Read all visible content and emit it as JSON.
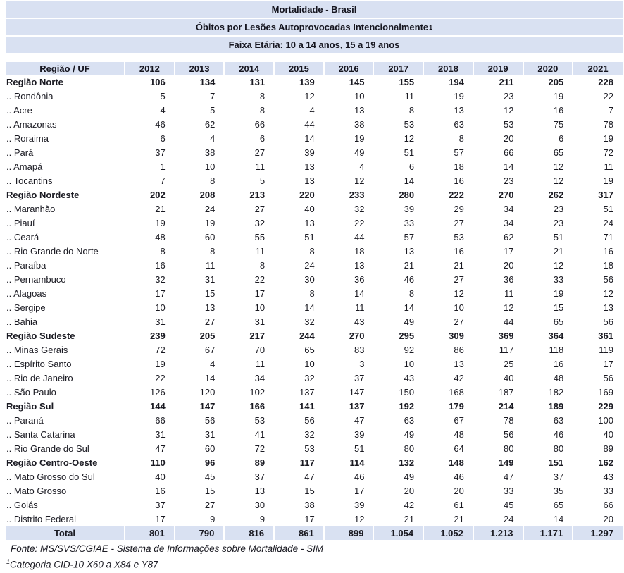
{
  "titles": {
    "line1": "Mortalidade - Brasil",
    "line2": "Óbitos por Lesões Autoprovocadas Intencionalmente",
    "line2_sup": "1",
    "line3": "Faixa Etária: 10 a 14 anos, 15 a 19 anos"
  },
  "colors": {
    "band_bg": "#d9e1f2",
    "text": "#1a1a22"
  },
  "table": {
    "header": [
      "Região / UF",
      "2012",
      "2013",
      "2014",
      "2015",
      "2016",
      "2017",
      "2018",
      "2019",
      "2020",
      "2021"
    ],
    "rows": [
      {
        "label": "Região Norte",
        "type": "region",
        "values": [
          "106",
          "134",
          "131",
          "139",
          "145",
          "155",
          "194",
          "211",
          "205",
          "228"
        ]
      },
      {
        "label": ".. Rondônia",
        "type": "state",
        "values": [
          "5",
          "7",
          "8",
          "12",
          "10",
          "11",
          "19",
          "23",
          "19",
          "22"
        ]
      },
      {
        "label": ".. Acre",
        "type": "state",
        "values": [
          "4",
          "5",
          "8",
          "4",
          "13",
          "8",
          "13",
          "12",
          "16",
          "7"
        ]
      },
      {
        "label": ".. Amazonas",
        "type": "state",
        "values": [
          "46",
          "62",
          "66",
          "44",
          "38",
          "53",
          "63",
          "53",
          "75",
          "78"
        ]
      },
      {
        "label": ".. Roraima",
        "type": "state",
        "values": [
          "6",
          "4",
          "6",
          "14",
          "19",
          "12",
          "8",
          "20",
          "6",
          "19"
        ]
      },
      {
        "label": ".. Pará",
        "type": "state",
        "values": [
          "37",
          "38",
          "27",
          "39",
          "49",
          "51",
          "57",
          "66",
          "65",
          "72"
        ]
      },
      {
        "label": ".. Amapá",
        "type": "state",
        "values": [
          "1",
          "10",
          "11",
          "13",
          "4",
          "6",
          "18",
          "14",
          "12",
          "11"
        ]
      },
      {
        "label": ".. Tocantins",
        "type": "state",
        "values": [
          "7",
          "8",
          "5",
          "13",
          "12",
          "14",
          "16",
          "23",
          "12",
          "19"
        ]
      },
      {
        "label": "Região Nordeste",
        "type": "region",
        "values": [
          "202",
          "208",
          "213",
          "220",
          "233",
          "280",
          "222",
          "270",
          "262",
          "317"
        ]
      },
      {
        "label": ".. Maranhão",
        "type": "state",
        "values": [
          "21",
          "24",
          "27",
          "40",
          "32",
          "39",
          "29",
          "34",
          "23",
          "51"
        ]
      },
      {
        "label": ".. Piauí",
        "type": "state",
        "values": [
          "19",
          "19",
          "32",
          "13",
          "22",
          "33",
          "27",
          "34",
          "23",
          "24"
        ]
      },
      {
        "label": ".. Ceará",
        "type": "state",
        "values": [
          "48",
          "60",
          "55",
          "51",
          "44",
          "57",
          "53",
          "62",
          "51",
          "71"
        ]
      },
      {
        "label": ".. Rio Grande do Norte",
        "type": "state",
        "values": [
          "8",
          "8",
          "11",
          "8",
          "18",
          "13",
          "16",
          "17",
          "21",
          "16"
        ]
      },
      {
        "label": ".. Paraíba",
        "type": "state",
        "values": [
          "16",
          "11",
          "8",
          "24",
          "13",
          "21",
          "21",
          "20",
          "12",
          "18"
        ]
      },
      {
        "label": ".. Pernambuco",
        "type": "state",
        "values": [
          "32",
          "31",
          "22",
          "30",
          "36",
          "46",
          "27",
          "36",
          "33",
          "56"
        ]
      },
      {
        "label": ".. Alagoas",
        "type": "state",
        "values": [
          "17",
          "15",
          "17",
          "8",
          "14",
          "8",
          "12",
          "11",
          "19",
          "12"
        ]
      },
      {
        "label": ".. Sergipe",
        "type": "state",
        "values": [
          "10",
          "13",
          "10",
          "14",
          "11",
          "14",
          "10",
          "12",
          "15",
          "13"
        ]
      },
      {
        "label": ".. Bahia",
        "type": "state",
        "values": [
          "31",
          "27",
          "31",
          "32",
          "43",
          "49",
          "27",
          "44",
          "65",
          "56"
        ]
      },
      {
        "label": "Região Sudeste",
        "type": "region",
        "values": [
          "239",
          "205",
          "217",
          "244",
          "270",
          "295",
          "309",
          "369",
          "364",
          "361"
        ]
      },
      {
        "label": ".. Minas Gerais",
        "type": "state",
        "values": [
          "72",
          "67",
          "70",
          "65",
          "83",
          "92",
          "86",
          "117",
          "118",
          "119"
        ]
      },
      {
        "label": ".. Espírito Santo",
        "type": "state",
        "values": [
          "19",
          "4",
          "11",
          "10",
          "3",
          "10",
          "13",
          "25",
          "16",
          "17"
        ]
      },
      {
        "label": ".. Rio de Janeiro",
        "type": "state",
        "values": [
          "22",
          "14",
          "34",
          "32",
          "37",
          "43",
          "42",
          "40",
          "48",
          "56"
        ]
      },
      {
        "label": ".. São Paulo",
        "type": "state",
        "values": [
          "126",
          "120",
          "102",
          "137",
          "147",
          "150",
          "168",
          "187",
          "182",
          "169"
        ]
      },
      {
        "label": "Região Sul",
        "type": "region",
        "values": [
          "144",
          "147",
          "166",
          "141",
          "137",
          "192",
          "179",
          "214",
          "189",
          "229"
        ]
      },
      {
        "label": ".. Paraná",
        "type": "state",
        "values": [
          "66",
          "56",
          "53",
          "56",
          "47",
          "63",
          "67",
          "78",
          "63",
          "100"
        ]
      },
      {
        "label": ".. Santa Catarina",
        "type": "state",
        "values": [
          "31",
          "31",
          "41",
          "32",
          "39",
          "49",
          "48",
          "56",
          "46",
          "40"
        ]
      },
      {
        "label": ".. Rio Grande do Sul",
        "type": "state",
        "values": [
          "47",
          "60",
          "72",
          "53",
          "51",
          "80",
          "64",
          "80",
          "80",
          "89"
        ]
      },
      {
        "label": "Região Centro-Oeste",
        "type": "region",
        "values": [
          "110",
          "96",
          "89",
          "117",
          "114",
          "132",
          "148",
          "149",
          "151",
          "162"
        ]
      },
      {
        "label": ".. Mato Grosso do Sul",
        "type": "state",
        "values": [
          "40",
          "45",
          "37",
          "47",
          "46",
          "49",
          "46",
          "47",
          "37",
          "43"
        ]
      },
      {
        "label": ".. Mato Grosso",
        "type": "state",
        "values": [
          "16",
          "15",
          "13",
          "15",
          "17",
          "20",
          "20",
          "33",
          "35",
          "33"
        ]
      },
      {
        "label": ".. Goiás",
        "type": "state",
        "values": [
          "37",
          "27",
          "30",
          "38",
          "39",
          "42",
          "61",
          "45",
          "65",
          "66"
        ]
      },
      {
        "label": ".. Distrito Federal",
        "type": "state",
        "values": [
          "17",
          "9",
          "9",
          "17",
          "12",
          "21",
          "21",
          "24",
          "14",
          "20"
        ]
      },
      {
        "label": "Total",
        "type": "total",
        "values": [
          "801",
          "790",
          "816",
          "861",
          "899",
          "1.054",
          "1.052",
          "1.213",
          "1.171",
          "1.297"
        ]
      }
    ]
  },
  "footer": {
    "source": "Fonte: MS/SVS/CGIAE - Sistema de Informações sobre Mortalidade - SIM",
    "note_sup": "1",
    "note": "Categoria CID-10 X60 a X84 e Y87"
  }
}
